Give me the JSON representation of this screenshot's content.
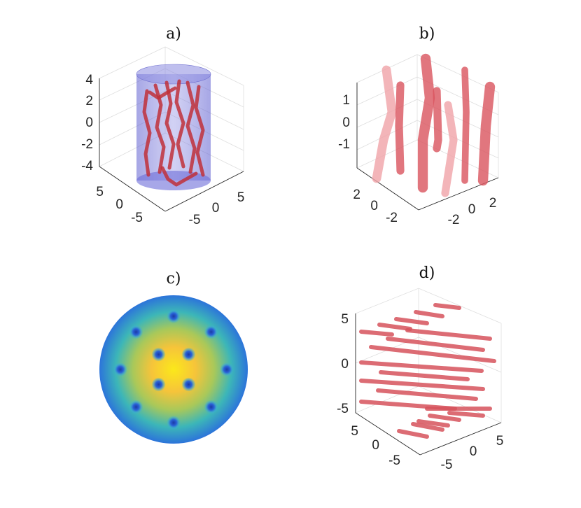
{
  "chart_data": [
    {
      "type": "scatter",
      "panel": "a)",
      "title": "a)",
      "description_kind": "3d-vortex-lines-in-cylinder",
      "z_ticks": [
        "4",
        "2",
        "0",
        "-2",
        "-4"
      ],
      "y_ticks": [
        "5",
        "0",
        "-5"
      ],
      "x_ticks": [
        "-5",
        "0",
        "5"
      ],
      "xlim": [
        -8,
        8
      ],
      "ylim": [
        -8,
        8
      ],
      "zlim": [
        -5,
        5
      ],
      "grid": true,
      "colors": {
        "cylinder": "#6f6fd8",
        "vortex": "#c0303a"
      }
    },
    {
      "type": "scatter",
      "panel": "b)",
      "title": "b)",
      "z_ticks": [
        "1",
        "0",
        "-1"
      ],
      "y_ticks": [
        "2",
        "0",
        "-2"
      ],
      "x_ticks": [
        "-2",
        "0",
        "2"
      ],
      "xlim": [
        -3.5,
        3.5
      ],
      "ylim": [
        -3.5,
        3.5
      ],
      "zlim": [
        -2,
        2
      ],
      "grid": true,
      "colors": {
        "vortex": "#d9545e",
        "vortex_light": "#f0a3a8"
      }
    },
    {
      "type": "heatmap",
      "panel": "c)",
      "title": "c)",
      "vortex_cores": [
        {
          "x": 0.0,
          "y": 0.78
        },
        {
          "x": 0.55,
          "y": 0.55
        },
        {
          "x": 0.78,
          "y": 0.0
        },
        {
          "x": 0.55,
          "y": -0.55
        },
        {
          "x": 0.0,
          "y": -0.78
        },
        {
          "x": -0.55,
          "y": -0.55
        },
        {
          "x": -0.78,
          "y": 0.0
        },
        {
          "x": -0.55,
          "y": 0.55
        },
        {
          "x": -0.22,
          "y": 0.22
        },
        {
          "x": 0.22,
          "y": 0.22
        },
        {
          "x": -0.22,
          "y": -0.22
        },
        {
          "x": 0.22,
          "y": -0.22
        }
      ],
      "colormap": "parula",
      "colors": {
        "low": "#2f6fd8",
        "mid": "#3fc0b0",
        "high": "#f8e61c",
        "core": "#1f3fae"
      }
    },
    {
      "type": "scatter",
      "panel": "d)",
      "title": "d)",
      "z_ticks": [
        "5",
        "0",
        "-5"
      ],
      "y_ticks": [
        "5",
        "0",
        "-5"
      ],
      "x_ticks": [
        "-5",
        "0",
        "5"
      ],
      "xlim": [
        -8,
        8
      ],
      "ylim": [
        -8,
        8
      ],
      "zlim": [
        -6,
        6
      ],
      "grid": true,
      "colors": {
        "vortex": "#d6525c"
      }
    }
  ]
}
